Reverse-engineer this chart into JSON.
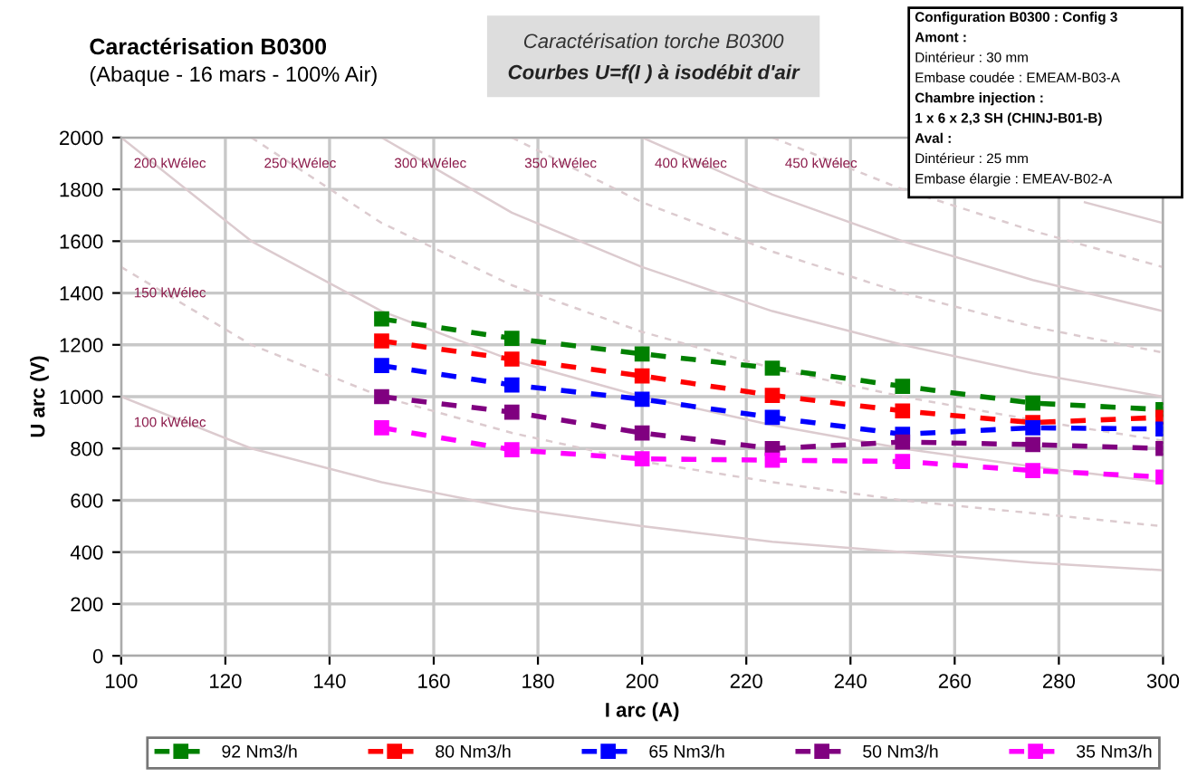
{
  "chart_data": {
    "type": "line",
    "title": "Caractérisation B0300",
    "subtitle": "(Abaque - 16 mars - 100% Air)",
    "xlabel": "I arc (A)",
    "ylabel": "U arc (V)",
    "annotations": [
      "Caractérisation torche B0300",
      "Courbes U=f(I ) à isodébit d'air",
      "Configuration B0300 : Config 3",
      "Amont :",
      "Dintérieur : 30 mm",
      "Embase coudée : EMEAM-B03-A",
      "Chambre injection :",
      "1 x 6 x 2,3 SH (CHINJ-B01-B)",
      "Aval :",
      "Dintérieur : 25 mm",
      "Embase élargie : EMEAV-B02-A"
    ],
    "x": [
      150,
      175,
      200,
      225,
      250,
      275,
      300
    ],
    "xlim": [
      100,
      300
    ],
    "xticks": [
      100,
      120,
      140,
      160,
      180,
      200,
      220,
      240,
      260,
      280,
      300
    ],
    "ylim": [
      0,
      2000
    ],
    "yticks": [
      0,
      200,
      400,
      600,
      800,
      1000,
      1200,
      1400,
      1600,
      1800,
      2000
    ],
    "grid": true,
    "legend": "bottom",
    "marker": "square",
    "line_style": "dashed",
    "series": [
      {
        "name": "92 Nm3/h",
        "color": "#008000",
        "values": [
          1300,
          1225,
          1165,
          1110,
          1040,
          975,
          950
        ]
      },
      {
        "name": "80 Nm3/h",
        "color": "#ff0000",
        "values": [
          1215,
          1145,
          1080,
          1005,
          945,
          900,
          920
        ]
      },
      {
        "name": "65 Nm3/h",
        "color": "#0000ff",
        "values": [
          1120,
          1045,
          990,
          920,
          855,
          880,
          875
        ]
      },
      {
        "name": "50 Nm3/h",
        "color": "#800080",
        "values": [
          1000,
          940,
          860,
          800,
          825,
          815,
          800
        ]
      },
      {
        "name": "35 Nm3/h",
        "color": "#ff00ff",
        "values": [
          880,
          795,
          760,
          755,
          750,
          715,
          690
        ]
      },
      {
        "name": "100 kWélec",
        "color": "#dccbcf",
        "marker": "none",
        "line_style": "solid",
        "x": [
          100,
          125,
          150,
          175,
          200,
          225,
          250,
          275,
          300
        ],
        "values": [
          1000,
          800,
          670,
          570,
          500,
          440,
          400,
          360,
          330
        ]
      },
      {
        "name": "150 kWélec",
        "color": "#dccbcf",
        "marker": "none",
        "line_style": "dashed",
        "x": [
          100,
          125,
          150,
          175,
          200,
          225,
          250,
          275,
          300
        ],
        "values": [
          1500,
          1200,
          1000,
          860,
          750,
          670,
          600,
          550,
          500
        ]
      },
      {
        "name": "200 kWélec",
        "color": "#dccbcf",
        "marker": "none",
        "line_style": "solid",
        "x": [
          100,
          125,
          150,
          175,
          200,
          225,
          250,
          275,
          300
        ],
        "values": [
          2000,
          1600,
          1330,
          1140,
          1000,
          890,
          800,
          730,
          670
        ]
      },
      {
        "name": "250 kWélec",
        "color": "#dccbcf",
        "marker": "none",
        "line_style": "dashed",
        "x": [
          125,
          150,
          175,
          200,
          225,
          250,
          275,
          300
        ],
        "values": [
          2000,
          1670,
          1430,
          1250,
          1110,
          1000,
          910,
          830
        ]
      },
      {
        "name": "300 kWélec",
        "color": "#dccbcf",
        "marker": "none",
        "line_style": "solid",
        "x": [
          150,
          175,
          200,
          225,
          250,
          275,
          300
        ],
        "values": [
          2000,
          1710,
          1500,
          1330,
          1200,
          1090,
          1000
        ]
      },
      {
        "name": "350 kWélec",
        "color": "#dccbcf",
        "marker": "none",
        "line_style": "dashed",
        "x": [
          175,
          200,
          225,
          250,
          275,
          300
        ],
        "values": [
          2000,
          1750,
          1560,
          1400,
          1270,
          1170
        ]
      },
      {
        "name": "400 kWélec",
        "color": "#dccbcf",
        "marker": "none",
        "line_style": "solid",
        "x": [
          200,
          225,
          250,
          275,
          300
        ],
        "values": [
          2000,
          1780,
          1600,
          1450,
          1330
        ]
      },
      {
        "name": "450 kWélec",
        "color": "#dccbcf",
        "marker": "none",
        "line_style": "dashed",
        "x": [
          225,
          250,
          275,
          300
        ],
        "values": [
          2000,
          1800,
          1640,
          1500
        ]
      },
      {
        "color": "#dccbcf",
        "marker": "none",
        "line_style": "solid",
        "x": [
          285,
          300
        ],
        "values": [
          1750,
          1670
        ]
      }
    ]
  }
}
